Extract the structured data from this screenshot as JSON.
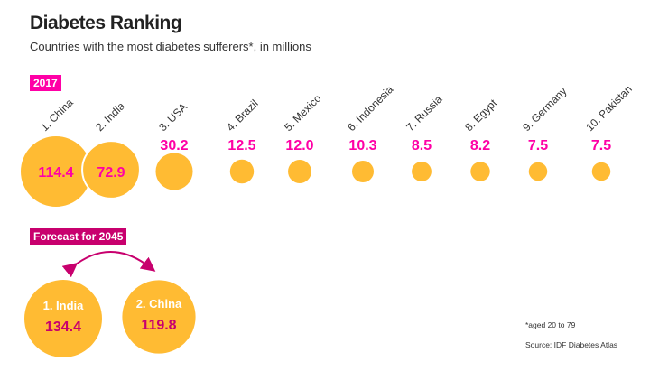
{
  "title": "Diabetes Ranking",
  "subtitle": "Countries with the most diabetes sufferers*, in millions",
  "footnote": "*aged 20 to 79",
  "source": "Source: IDF Diabetes Atlas",
  "colors": {
    "bubble": "#ffbb33",
    "value_2017": "#ff00a6",
    "forecast": "#c8006e",
    "label": "#333333"
  },
  "chart_data": [
    {
      "type": "bubble",
      "title": "2017",
      "categories": [
        "1. China",
        "2. India",
        "3. USA",
        "4. Brazil",
        "5. Mexico",
        "6. Indonesia",
        "7. Russia",
        "8. Egypt",
        "9. Germany",
        "10. Pakistan"
      ],
      "values": [
        114.4,
        72.9,
        30.2,
        12.5,
        12.0,
        10.3,
        8.5,
        8.2,
        7.5,
        7.5
      ],
      "value_labels": [
        "114.4",
        "72.9",
        "30.2",
        "12.5",
        "12.0",
        "10.3",
        "8.5",
        "8.2",
        "7.5",
        "7.5"
      ]
    },
    {
      "type": "bubble",
      "title": "Forecast for 2045",
      "categories": [
        "1. India",
        "2. China"
      ],
      "values": [
        134.4,
        119.8
      ],
      "value_labels": [
        "134.4",
        "119.8"
      ]
    }
  ]
}
